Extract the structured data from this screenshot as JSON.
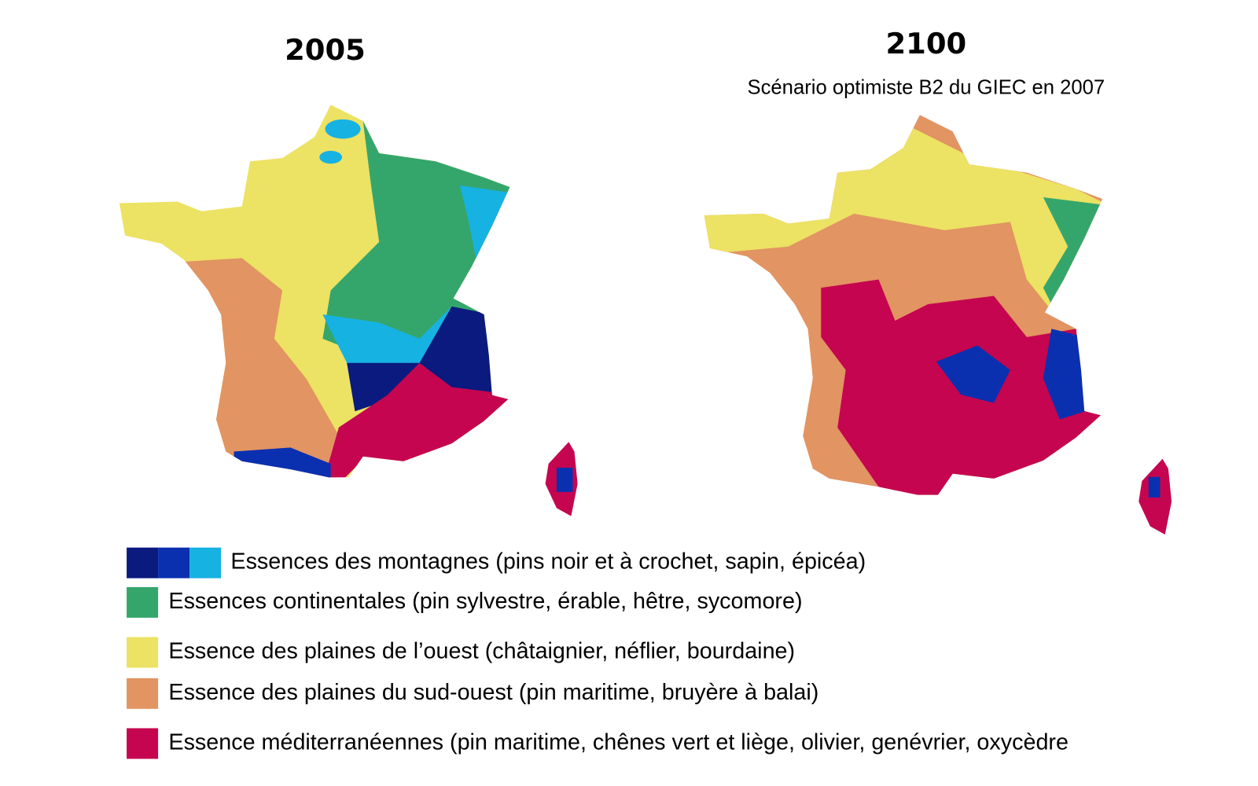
{
  "maps": [
    {
      "title": "2005"
    },
    {
      "title": "2100",
      "subtitle": "Scénario optimiste B2 du GIEC en 2007"
    }
  ],
  "legend": [
    {
      "label": "Essences des montagnes (pins noir et à crochet, sapin, épicéa)",
      "colors": [
        "#0b1a7e",
        "#0a30b0",
        "#16b2e2"
      ]
    },
    {
      "label": "Essences continentales (pin sylvestre, érable, hêtre, sycomore)",
      "colors": [
        "#35a66b"
      ]
    },
    {
      "label": "Essence des plaines de l’ouest (châtaignier, néflier, bourdaine)",
      "colors": [
        "#ece263"
      ]
    },
    {
      "label": "Essence des plaines du sud-ouest (pin maritime, bruyère à balai)",
      "colors": [
        "#e29462"
      ]
    },
    {
      "label": "Essence méditerranéennes (pin maritime, chênes vert et liège, olivier, genévrier, oxycèdre",
      "colors": [
        "#c5054f"
      ]
    }
  ]
}
